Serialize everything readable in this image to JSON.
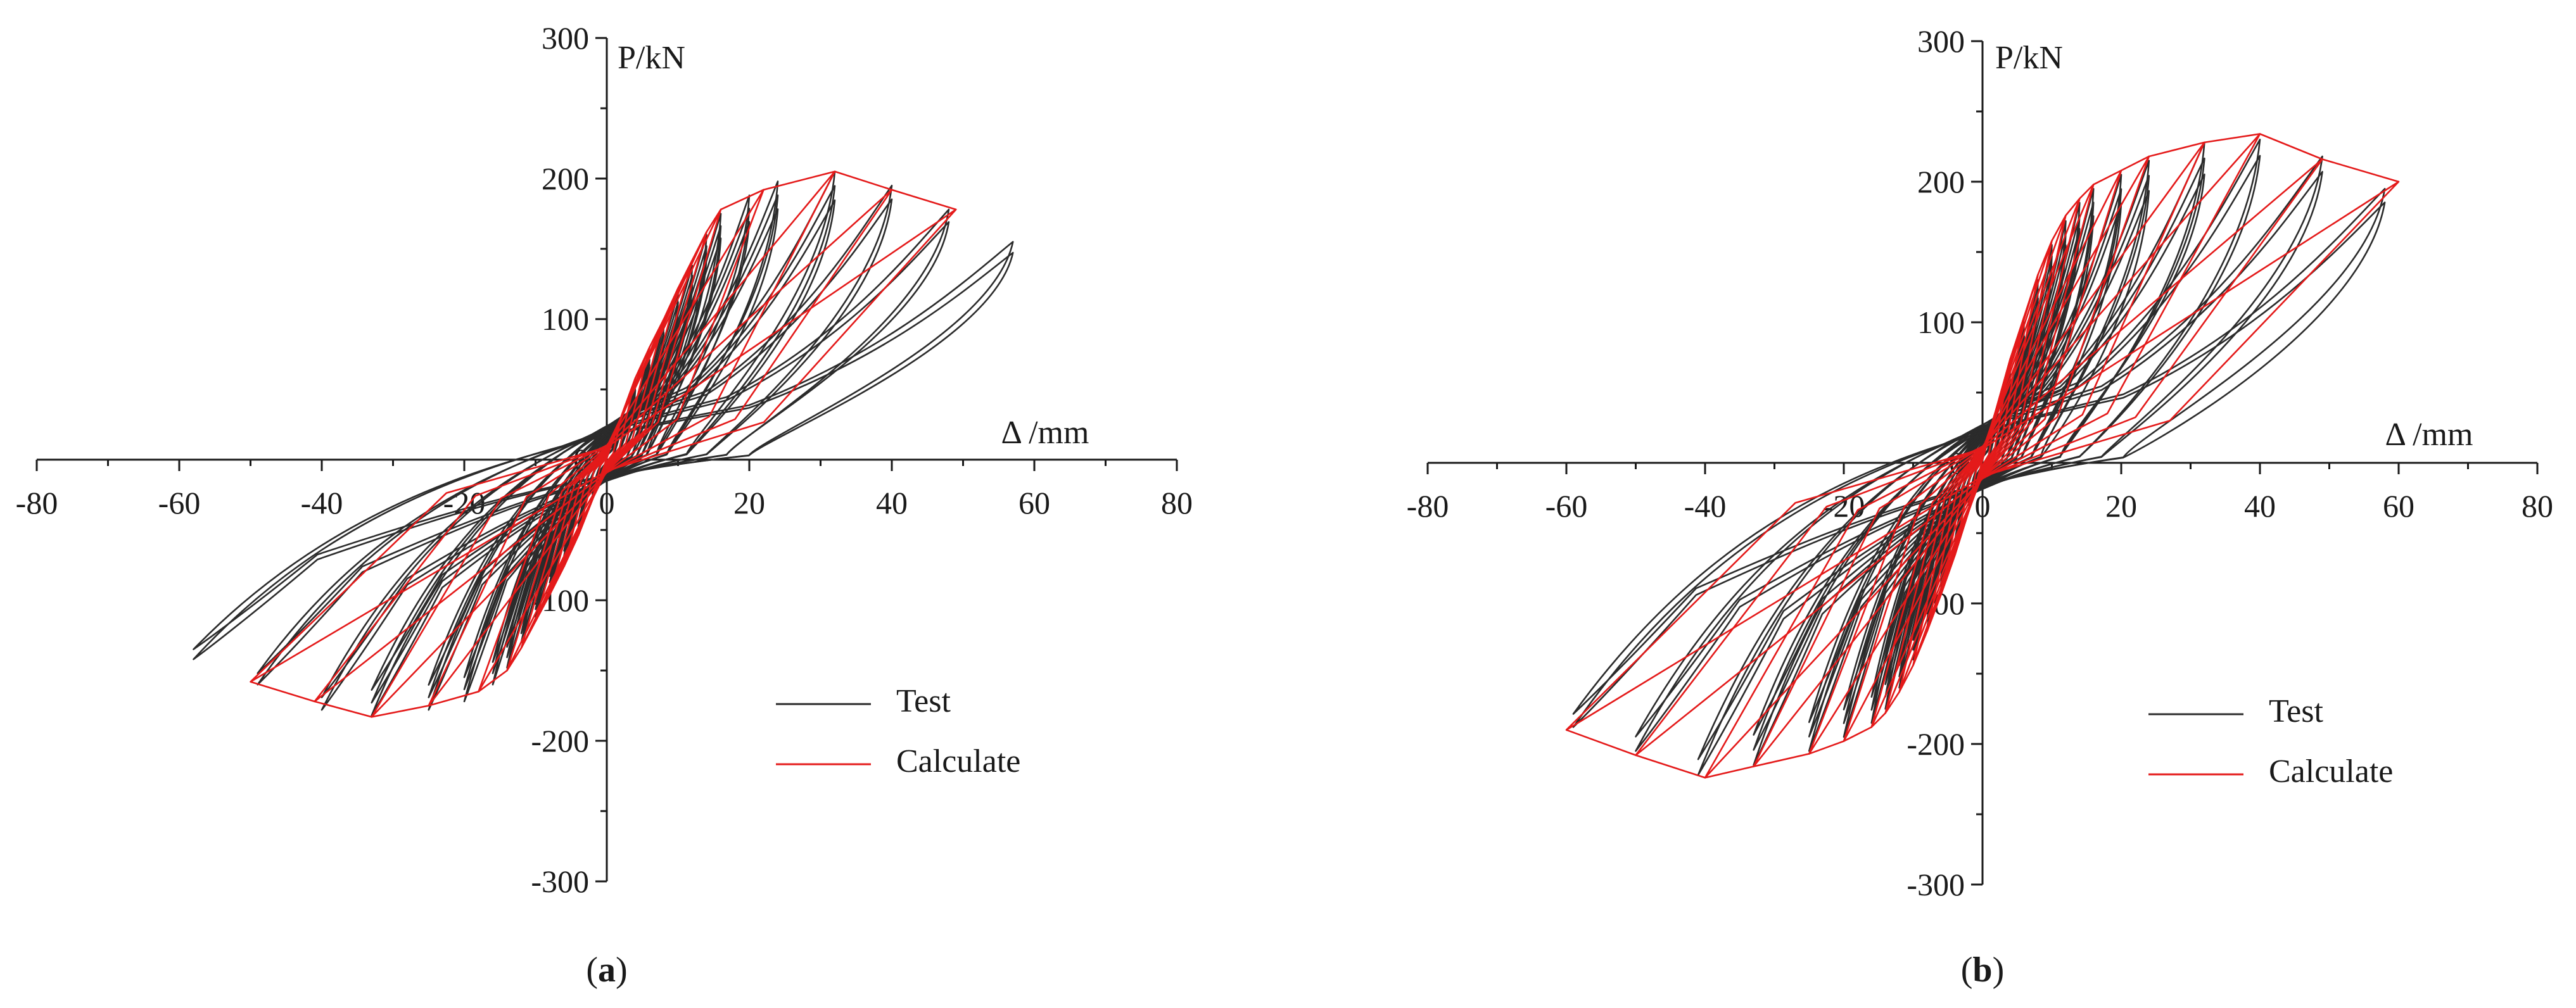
{
  "figure": {
    "panels": [
      "(a)",
      "(b)"
    ]
  },
  "chart_data": [
    {
      "type": "line",
      "panel_label": "(a)",
      "xlabel": "Δ /mm",
      "ylabel": "P/kN",
      "xlim": [
        -80,
        80
      ],
      "ylim": [
        -300,
        300
      ],
      "x_ticks": [
        -80,
        -60,
        -40,
        -20,
        0,
        20,
        40,
        60,
        80
      ],
      "y_ticks": [
        -300,
        -200,
        -100,
        0,
        100,
        200,
        300
      ],
      "grid": false,
      "legend_position": "bottom-right",
      "series": [
        {
          "name": "Test",
          "color": "#2b2b2b",
          "peaks": [
            [
              2,
              28
            ],
            [
              4,
              55
            ],
            [
              6,
              75
            ],
            [
              8,
              95
            ],
            [
              10,
              118
            ],
            [
              12,
              138
            ],
            [
              14,
              160
            ],
            [
              16,
              175
            ],
            [
              20,
              188
            ],
            [
              24,
              198
            ],
            [
              32,
              205
            ],
            [
              40,
              195
            ],
            [
              48,
              178
            ],
            [
              57,
              155
            ]
          ],
          "neg_peaks": [
            [
              -2,
              -25
            ],
            [
              -4,
              -50
            ],
            [
              -6,
              -72
            ],
            [
              -8,
              -92
            ],
            [
              -10,
              -112
            ],
            [
              -12,
              -130
            ],
            [
              -14,
              -148
            ],
            [
              -16,
              -160
            ],
            [
              -20,
              -172
            ],
            [
              -25,
              -178
            ],
            [
              -33,
              -182
            ],
            [
              -40,
              -178
            ],
            [
              -49,
              -160
            ],
            [
              -58,
              -142
            ]
          ]
        },
        {
          "name": "Calculate",
          "color": "#e41a1a",
          "peaks": [
            [
              2,
              30
            ],
            [
              4,
              58
            ],
            [
              6,
              80
            ],
            [
              8,
              100
            ],
            [
              10,
              122
            ],
            [
              12,
              142
            ],
            [
              14,
              162
            ],
            [
              16,
              178
            ],
            [
              22,
              192
            ],
            [
              32,
              205
            ],
            [
              40,
              192
            ],
            [
              49,
              178
            ]
          ],
          "neg_peaks": [
            [
              -2,
              -28
            ],
            [
              -4,
              -54
            ],
            [
              -6,
              -76
            ],
            [
              -8,
              -96
            ],
            [
              -10,
              -115
            ],
            [
              -12,
              -134
            ],
            [
              -14,
              -150
            ],
            [
              -18,
              -165
            ],
            [
              -25,
              -175
            ],
            [
              -33,
              -183
            ],
            [
              -41,
              -172
            ],
            [
              -50,
              -158
            ]
          ]
        }
      ]
    },
    {
      "type": "line",
      "panel_label": "(b)",
      "xlabel": "Δ /mm",
      "ylabel": "P/kN",
      "xlim": [
        -80,
        80
      ],
      "ylim": [
        -300,
        300
      ],
      "x_ticks": [
        -80,
        -60,
        -40,
        -20,
        0,
        20,
        40,
        60,
        80
      ],
      "y_ticks": [
        -300,
        -200,
        -100,
        0,
        100,
        200,
        300
      ],
      "grid": false,
      "legend_position": "bottom-right",
      "series": [
        {
          "name": "Test",
          "color": "#2b2b2b",
          "peaks": [
            [
              2,
              35
            ],
            [
              4,
              70
            ],
            [
              6,
              100
            ],
            [
              8,
              130
            ],
            [
              10,
              155
            ],
            [
              12,
              172
            ],
            [
              14,
              185
            ],
            [
              16,
              195
            ],
            [
              20,
              205
            ],
            [
              24,
              215
            ],
            [
              32,
              228
            ],
            [
              40,
              230
            ],
            [
              49,
              218
            ],
            [
              58,
              195
            ]
          ],
          "neg_peaks": [
            [
              -2,
              -30
            ],
            [
              -4,
              -62
            ],
            [
              -6,
              -90
            ],
            [
              -8,
              -118
            ],
            [
              -10,
              -140
            ],
            [
              -12,
              -160
            ],
            [
              -14,
              -175
            ],
            [
              -16,
              -185
            ],
            [
              -20,
              -195
            ],
            [
              -25,
              -205
            ],
            [
              -33,
              -215
            ],
            [
              -41,
              -222
            ],
            [
              -50,
              -205
            ],
            [
              -59,
              -188
            ]
          ]
        },
        {
          "name": "Calculate",
          "color": "#e41a1a",
          "peaks": [
            [
              2,
              38
            ],
            [
              4,
              74
            ],
            [
              6,
              104
            ],
            [
              8,
              134
            ],
            [
              10,
              158
            ],
            [
              12,
              176
            ],
            [
              14,
              188
            ],
            [
              16,
              198
            ],
            [
              20,
              208
            ],
            [
              24,
              218
            ],
            [
              32,
              228
            ],
            [
              40,
              234
            ],
            [
              49,
              216
            ],
            [
              60,
              200
            ]
          ],
          "neg_peaks": [
            [
              -2,
              -34
            ],
            [
              -4,
              -66
            ],
            [
              -6,
              -94
            ],
            [
              -8,
              -120
            ],
            [
              -10,
              -144
            ],
            [
              -12,
              -163
            ],
            [
              -14,
              -178
            ],
            [
              -16,
              -188
            ],
            [
              -20,
              -198
            ],
            [
              -25,
              -207
            ],
            [
              -33,
              -216
            ],
            [
              -40,
              -224
            ],
            [
              -50,
              -208
            ],
            [
              -60,
              -190
            ]
          ]
        }
      ]
    }
  ]
}
